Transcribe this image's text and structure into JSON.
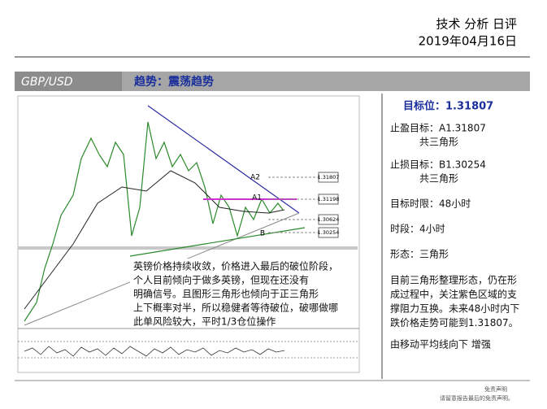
{
  "header": {
    "title": "技术 分析 日评",
    "date": "2019年04月16日"
  },
  "banner": {
    "pair": "GBP/USD",
    "trend": "趋势：震荡趋势"
  },
  "chart": {
    "labels": {
      "a2": "A2",
      "a1": "A1",
      "b": "B"
    },
    "levels": [
      "1.31807",
      "1.31198",
      "1.30624",
      "1.30254"
    ],
    "comment": [
      "英镑价格持续收敛，价格进入最后的破位阶段，",
      "个人目前倾向于做多英镑，但现在还没有",
      "明确信号。且图形三角形也倾向于正三角形",
      "上下概率对半，所以稳健者等待破位，破哪做哪",
      "此单风险较大，平时1/3仓位操作"
    ]
  },
  "sidebar": {
    "target": "目标位：1.31807",
    "take_profit": [
      "止盈目标：A1.31807",
      "共三角形"
    ],
    "stop_loss": [
      "止损目标：B1.30254",
      "共三角形"
    ],
    "time_limit": "目标时限：48小时",
    "timeframe": "时段：4小时",
    "pattern": "形态：三角形",
    "analysis": [
      "目前三角形整理形态，仍在形",
      "成过程中，关注紫色区域的支",
      "撑阻力互换。未来48小时内下",
      "跌价格走势可能到1.31807。"
    ],
    "note": "由移动平均线向下 增强"
  },
  "footer": {
    "disclaimer_title": "免责声明",
    "disclaimer": "请留意报告最后的免责声明。"
  }
}
